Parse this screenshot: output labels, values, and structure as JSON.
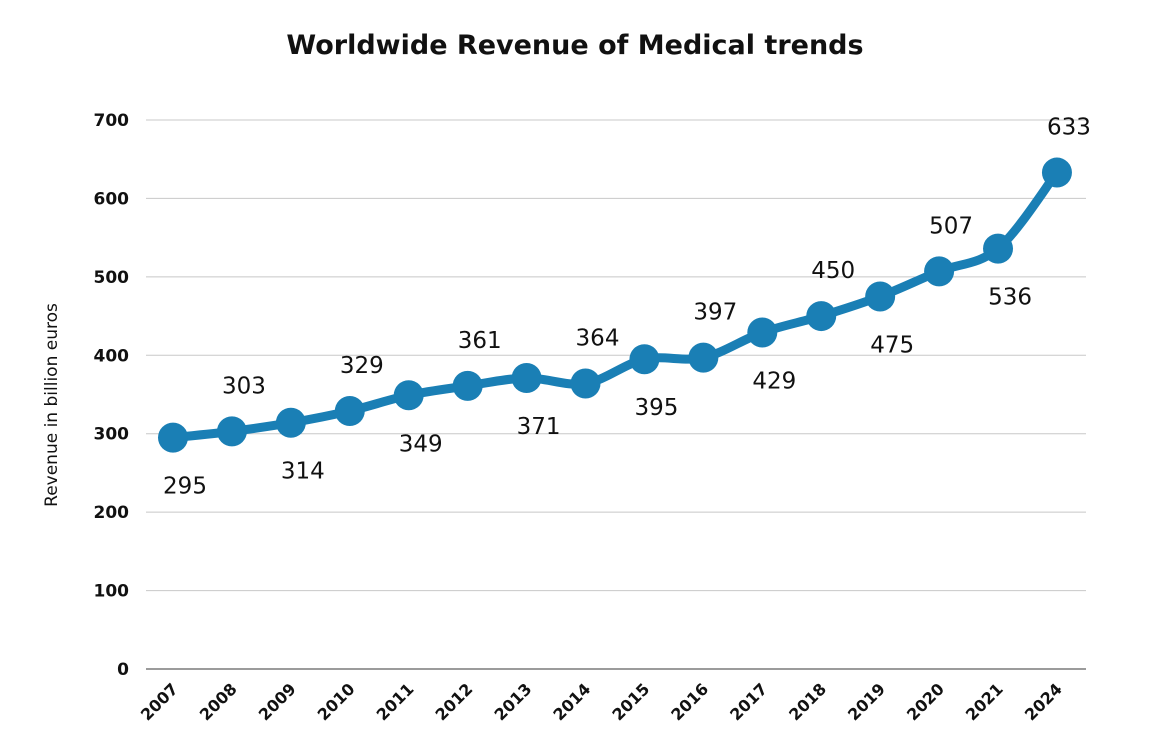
{
  "chart_data": {
    "type": "line",
    "title": "Worldwide Revenue of Medical trends",
    "xlabel": "",
    "ylabel": "Revenue in billion euros",
    "ylim": [
      0,
      700
    ],
    "yticks": [
      "0",
      "100",
      "200",
      "300",
      "400",
      "500",
      "600",
      "700"
    ],
    "grid": true,
    "legend": "none",
    "color": "#1a7fb5",
    "categories": [
      "2007",
      "2008",
      "2009",
      "2010",
      "2011",
      "2012",
      "2013",
      "2014",
      "2015",
      "2016",
      "2017",
      "2018",
      "2019",
      "2020",
      "2021",
      "2024"
    ],
    "series": [
      {
        "name": "Revenue",
        "values": [
          295,
          303,
          314,
          329,
          349,
          361,
          371,
          364,
          395,
          397,
          429,
          450,
          475,
          507,
          536,
          633
        ],
        "labels": [
          "295",
          "303",
          "314",
          "329",
          "349",
          "361",
          "371",
          "364",
          "395",
          "397",
          "429",
          "450",
          "475",
          "507",
          "536",
          "633"
        ]
      }
    ]
  }
}
